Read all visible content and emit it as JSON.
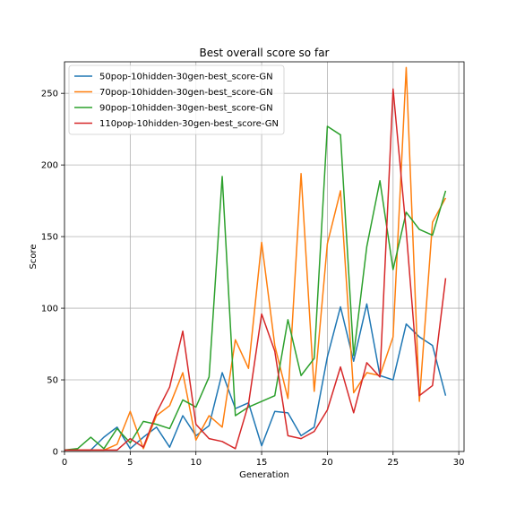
{
  "chart_data": {
    "type": "line",
    "title": "Best overall score so far",
    "xlabel": "Generation",
    "ylabel": "Score",
    "xlim": [
      0,
      30.4
    ],
    "ylim": [
      0,
      272
    ],
    "xticks": [
      0,
      5,
      10,
      15,
      20,
      25,
      30
    ],
    "yticks": [
      0,
      50,
      100,
      150,
      200,
      250
    ],
    "grid": true,
    "legend_position": "top-left",
    "x": [
      0,
      1,
      2,
      3,
      4,
      5,
      6,
      7,
      8,
      9,
      10,
      11,
      12,
      13,
      14,
      15,
      16,
      17,
      18,
      19,
      20,
      21,
      22,
      23,
      24,
      25,
      26,
      27,
      28,
      29
    ],
    "series": [
      {
        "name": "50pop-10hidden-30gen-best_score-GN",
        "color": "#1f77b4",
        "values": [
          1,
          1,
          1,
          10,
          17,
          2,
          10,
          17,
          3,
          25,
          11,
          18,
          55,
          30,
          34,
          4,
          28,
          27,
          11,
          17,
          66,
          101,
          63,
          103,
          53,
          50,
          89,
          80,
          74,
          39
        ]
      },
      {
        "name": "70pop-10hidden-30gen-best_score-GN",
        "color": "#ff7f0e",
        "values": [
          1,
          1,
          1,
          1,
          5,
          28,
          2,
          25,
          32,
          55,
          8,
          25,
          17,
          78,
          58,
          146,
          74,
          37,
          194,
          42,
          145,
          182,
          41,
          55,
          53,
          80,
          268,
          35,
          160,
          177
        ]
      },
      {
        "name": "90pop-10hidden-30gen-best_score-GN",
        "color": "#2ca02c",
        "values": [
          1,
          2,
          10,
          2,
          16,
          6,
          21,
          19,
          16,
          36,
          31,
          52,
          192,
          25,
          31,
          35,
          39,
          92,
          53,
          65,
          227,
          221,
          67,
          143,
          189,
          127,
          167,
          155,
          151,
          182
        ]
      },
      {
        "name": "110pop-10hidden-30gen-best_score-GN",
        "color": "#d62728",
        "values": [
          1,
          1,
          1,
          1,
          1,
          9,
          3,
          27,
          45,
          84,
          19,
          9,
          7,
          2,
          33,
          96,
          70,
          11,
          9,
          14,
          29,
          59,
          27,
          62,
          52,
          253,
          154,
          39,
          46,
          121
        ]
      }
    ]
  }
}
